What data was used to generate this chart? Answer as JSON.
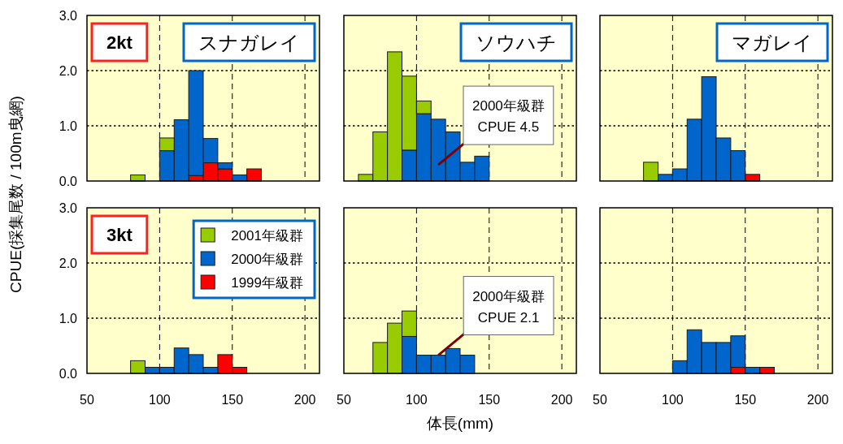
{
  "chart_data": [
    {
      "type": "bar",
      "stacked": true,
      "title": "スナガレイ",
      "subtitle": "2kt",
      "ylabel": "CPUE(採集尾数 / 100m曳網)",
      "x": [
        85,
        105,
        115,
        125,
        135,
        145,
        155,
        165
      ],
      "xlim": [
        50,
        210
      ],
      "ylim": [
        0,
        3
      ],
      "xticks": [
        50,
        100,
        150,
        200
      ],
      "yticks": [
        {
          "value": 0,
          "label": "0.0"
        },
        {
          "value": 1,
          "label": "1.0"
        },
        {
          "value": 2,
          "label": "2.0"
        },
        {
          "value": 3,
          "label": "3.0"
        }
      ],
      "grid": true,
      "tick_labels": "y",
      "series": [
        {
          "color": "#ff0000",
          "values": [
            null,
            null,
            null,
            0.1,
            0.33,
            0.22,
            null,
            0.22
          ]
        },
        {
          "color": "#0066cc",
          "values": [
            null,
            0.55,
            1.11,
            1.9,
            0.44,
            0.11,
            0.11,
            null
          ]
        },
        {
          "color": "#99cc00",
          "values": [
            0.11,
            0.23,
            null,
            null,
            null,
            null,
            null,
            null
          ]
        }
      ]
    },
    {
      "type": "bar",
      "stacked": true,
      "title": "ソウハチ",
      "annotations": [
        "2000年級群\nCPUE 4.5"
      ],
      "x": [
        65,
        75,
        85,
        95,
        105,
        115,
        125,
        135,
        145
      ],
      "xlim": [
        50,
        210
      ],
      "ylim": [
        0,
        3
      ],
      "xticks": [
        50,
        100,
        150,
        200
      ],
      "yticks": [
        0,
        1,
        2,
        3
      ],
      "grid": true,
      "tick_labels": false,
      "series": [
        {
          "color": "#0066cc",
          "values": [
            null,
            null,
            null,
            0.56,
            1.22,
            1.12,
            0.89,
            0.34,
            0.45
          ]
        },
        {
          "color": "#99cc00",
          "values": [
            0.12,
            0.89,
            2.34,
            1.34,
            0.23,
            null,
            null,
            null,
            null
          ]
        }
      ]
    },
    {
      "type": "bar",
      "stacked": true,
      "title": "マガレイ",
      "x": [
        85,
        95,
        105,
        115,
        125,
        135,
        145,
        155
      ],
      "xlim": [
        50,
        210
      ],
      "ylim": [
        0,
        3
      ],
      "xticks": [
        50,
        100,
        150,
        200
      ],
      "yticks": [
        0,
        1,
        2,
        3
      ],
      "grid": true,
      "tick_labels": false,
      "series": [
        {
          "color": "#ff0000",
          "values": [
            null,
            null,
            null,
            null,
            null,
            null,
            null,
            0.12
          ]
        },
        {
          "color": "#0066cc",
          "values": [
            null,
            0.12,
            0.22,
            1.12,
            1.89,
            0.78,
            0.55,
            null
          ]
        },
        {
          "color": "#99cc00",
          "values": [
            0.34,
            null,
            null,
            null,
            null,
            null,
            null,
            null
          ]
        }
      ]
    },
    {
      "type": "bar",
      "stacked": true,
      "subtitle": "3kt",
      "legend": "top right",
      "x": [
        85,
        95,
        105,
        115,
        125,
        135,
        145,
        155
      ],
      "xlim": [
        50,
        210
      ],
      "ylim": [
        0,
        3
      ],
      "xticks": [
        50,
        100,
        150,
        200
      ],
      "yticks": [
        {
          "value": 0,
          "label": "0.0"
        },
        {
          "value": 1,
          "label": "1.0"
        },
        {
          "value": 2,
          "label": "2.0"
        },
        {
          "value": 3,
          "label": "3.0"
        }
      ],
      "grid": true,
      "series": [
        {
          "name": "1999年級群",
          "color": "#ff0000",
          "values": [
            null,
            null,
            null,
            null,
            null,
            null,
            0.34,
            0.11
          ]
        },
        {
          "name": "2000年級群",
          "color": "#0066cc",
          "values": [
            null,
            0.11,
            0.11,
            0.46,
            0.34,
            0.11,
            null,
            null
          ]
        },
        {
          "name": "2001年級群",
          "color": "#99cc00",
          "values": [
            0.23,
            null,
            null,
            null,
            null,
            null,
            null,
            null
          ]
        }
      ]
    },
    {
      "type": "bar",
      "stacked": true,
      "xlabel": "体長(mm)",
      "annotations": [
        {
          "text": "2000年級群\nCPUE 2.1",
          "x": 115,
          "y": 0.33
        }
      ],
      "x": [
        75,
        85,
        95,
        105,
        115,
        125,
        135
      ],
      "xlim": [
        50,
        210
      ],
      "ylim": [
        0,
        3
      ],
      "xticks": [
        50,
        100,
        150,
        200
      ],
      "yticks": [
        0,
        1,
        2,
        3
      ],
      "grid": true,
      "tick_labels": "x",
      "series": [
        {
          "color": "#0066cc",
          "values": [
            null,
            null,
            0.67,
            0.33,
            0.33,
            0.45,
            0.33
          ]
        },
        {
          "color": "#99cc00",
          "values": [
            0.56,
            0.91,
            0.46,
            null,
            null,
            null,
            null
          ]
        }
      ]
    },
    {
      "type": "bar",
      "stacked": true,
      "x": [
        105,
        115,
        125,
        135,
        145,
        155,
        165
      ],
      "xlim": [
        50,
        210
      ],
      "ylim": [
        0,
        3
      ],
      "xticks": [
        50,
        100,
        150,
        200
      ],
      "yticks": [
        0,
        1,
        2,
        3
      ],
      "grid": true,
      "tick_labels": "x",
      "series": [
        {
          "color": "#ff0000",
          "values": [
            null,
            null,
            null,
            null,
            0.11,
            null,
            0.11
          ]
        },
        {
          "color": "#0066cc",
          "values": [
            0.23,
            0.79,
            0.56,
            0.56,
            0.57,
            0.11,
            null
          ]
        }
      ]
    }
  ]
}
